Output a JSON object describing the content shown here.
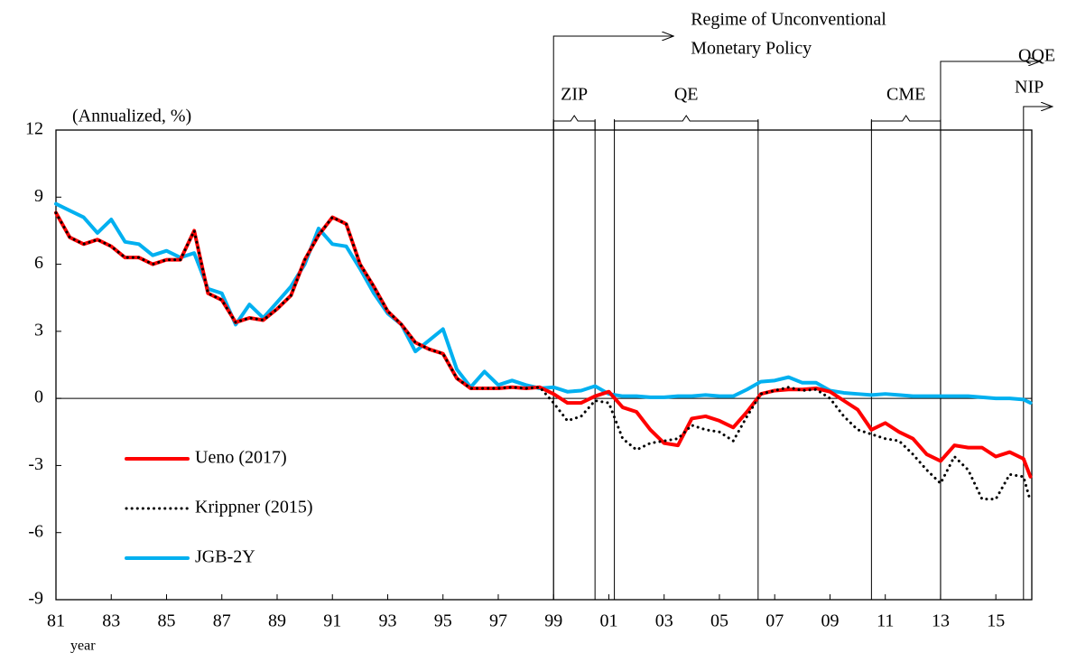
{
  "chart_data": {
    "type": "line",
    "ylabel": "(Annualized, %)",
    "xlabel": "year",
    "xlim": [
      1981,
      2016.3
    ],
    "ylim": [
      -9,
      12
    ],
    "yticks": [
      12,
      9,
      6,
      3,
      0,
      -3,
      -6,
      -9
    ],
    "xticks": [
      {
        "value": 1981,
        "label": "81"
      },
      {
        "value": 1983,
        "label": "83"
      },
      {
        "value": 1985,
        "label": "85"
      },
      {
        "value": 1987,
        "label": "87"
      },
      {
        "value": 1989,
        "label": "89"
      },
      {
        "value": 1991,
        "label": "91"
      },
      {
        "value": 1993,
        "label": "93"
      },
      {
        "value": 1995,
        "label": "95"
      },
      {
        "value": 1997,
        "label": "97"
      },
      {
        "value": 1999,
        "label": "99"
      },
      {
        "value": 2001,
        "label": "01"
      },
      {
        "value": 2003,
        "label": "03"
      },
      {
        "value": 2005,
        "label": "05"
      },
      {
        "value": 2007,
        "label": "07"
      },
      {
        "value": 2009,
        "label": "09"
      },
      {
        "value": 2011,
        "label": "11"
      },
      {
        "value": 2013,
        "label": "13"
      },
      {
        "value": 2015,
        "label": "15"
      }
    ],
    "legend": "lower left",
    "x": [
      1981,
      1981.5,
      1982,
      1982.5,
      1983,
      1983.5,
      1984,
      1984.5,
      1985,
      1985.5,
      1986,
      1986.5,
      1987,
      1987.5,
      1988,
      1988.5,
      1989,
      1989.5,
      1990,
      1990.5,
      1991,
      1991.5,
      1992,
      1992.5,
      1993,
      1993.5,
      1994,
      1994.5,
      1995,
      1995.5,
      1996,
      1996.5,
      1997,
      1997.5,
      1998,
      1998.5,
      1999,
      1999.5,
      2000,
      2000.5,
      2001,
      2001.5,
      2002,
      2002.5,
      2003,
      2003.5,
      2004,
      2004.5,
      2005,
      2005.5,
      2006,
      2006.5,
      2007,
      2007.5,
      2008,
      2008.5,
      2009,
      2009.5,
      2010,
      2010.5,
      2011,
      2011.5,
      2012,
      2012.5,
      2013,
      2013.5,
      2014,
      2014.5,
      2015,
      2015.5,
      2016,
      2016.25
    ],
    "series": [
      {
        "name": "Ueno (2017)",
        "color": "#ff0000",
        "style": "solid",
        "values": [
          8.3,
          7.2,
          6.9,
          7.1,
          6.8,
          6.3,
          6.3,
          6.0,
          6.2,
          6.2,
          7.5,
          4.7,
          4.4,
          3.4,
          3.6,
          3.5,
          4.0,
          4.6,
          6.2,
          7.3,
          8.1,
          7.8,
          6.0,
          5.0,
          3.9,
          3.3,
          2.5,
          2.2,
          2.0,
          0.9,
          0.45,
          0.45,
          0.45,
          0.5,
          0.45,
          0.5,
          0.2,
          -0.2,
          -0.2,
          0.1,
          0.3,
          -0.4,
          -0.6,
          -1.4,
          -2.0,
          -2.1,
          -0.9,
          -0.8,
          -1.0,
          -1.3,
          -0.6,
          0.2,
          0.35,
          0.4,
          0.4,
          0.45,
          0.3,
          -0.1,
          -0.5,
          -1.4,
          -1.1,
          -1.5,
          -1.8,
          -2.5,
          -2.8,
          -2.1,
          -2.2,
          -2.2,
          -2.6,
          -2.4,
          -2.7,
          -3.5
        ]
      },
      {
        "name": "Krippner (2015)",
        "color": "#000000",
        "style": "dotted",
        "values": [
          8.3,
          7.2,
          6.9,
          7.1,
          6.8,
          6.3,
          6.3,
          6.0,
          6.2,
          6.2,
          7.5,
          4.7,
          4.4,
          3.4,
          3.6,
          3.5,
          4.0,
          4.6,
          6.2,
          7.3,
          8.1,
          7.8,
          6.0,
          5.0,
          3.9,
          3.3,
          2.5,
          2.2,
          2.0,
          0.9,
          0.45,
          0.45,
          0.45,
          0.5,
          0.45,
          0.5,
          -0.2,
          -1.0,
          -0.8,
          -0.1,
          -0.2,
          -1.8,
          -2.3,
          -2.0,
          -1.9,
          -1.8,
          -1.2,
          -1.4,
          -1.5,
          -1.9,
          -0.8,
          0.2,
          0.35,
          0.5,
          0.35,
          0.4,
          0.0,
          -0.8,
          -1.4,
          -1.6,
          -1.8,
          -1.9,
          -2.5,
          -3.2,
          -3.8,
          -2.6,
          -3.2,
          -4.5,
          -4.5,
          -3.4,
          -3.5,
          -4.6
        ]
      },
      {
        "name": "JGB-2Y",
        "color": "#00b0f0",
        "style": "solid",
        "values": [
          8.7,
          8.4,
          8.1,
          7.4,
          8.0,
          7.0,
          6.9,
          6.4,
          6.6,
          6.3,
          6.5,
          4.9,
          4.7,
          3.3,
          4.2,
          3.6,
          4.3,
          5.0,
          6.0,
          7.6,
          6.9,
          6.8,
          5.8,
          4.7,
          3.8,
          3.3,
          2.1,
          2.6,
          3.1,
          1.3,
          0.5,
          1.2,
          0.6,
          0.8,
          0.6,
          0.45,
          0.5,
          0.3,
          0.35,
          0.55,
          0.2,
          0.1,
          0.1,
          0.05,
          0.05,
          0.1,
          0.1,
          0.15,
          0.1,
          0.1,
          0.4,
          0.75,
          0.8,
          0.95,
          0.7,
          0.7,
          0.35,
          0.25,
          0.2,
          0.15,
          0.2,
          0.15,
          0.1,
          0.1,
          0.1,
          0.1,
          0.1,
          0.05,
          0.0,
          0.0,
          -0.05,
          -0.2
        ]
      }
    ],
    "regime": {
      "label": [
        "Regime of  Unconventional",
        "Monetary Policy"
      ],
      "start": 1999.0
    },
    "periods": [
      {
        "label": "ZIP",
        "start": 1999.0,
        "end": 2000.5
      },
      {
        "label": "QE",
        "start": 2001.2,
        "end": 2006.4
      },
      {
        "label": "CME",
        "start": 2010.5,
        "end": 2013.0
      }
    ],
    "arrows": [
      {
        "label": "QQE",
        "start": 2013.0
      },
      {
        "label": "NIP",
        "start": 2016.0
      }
    ]
  }
}
